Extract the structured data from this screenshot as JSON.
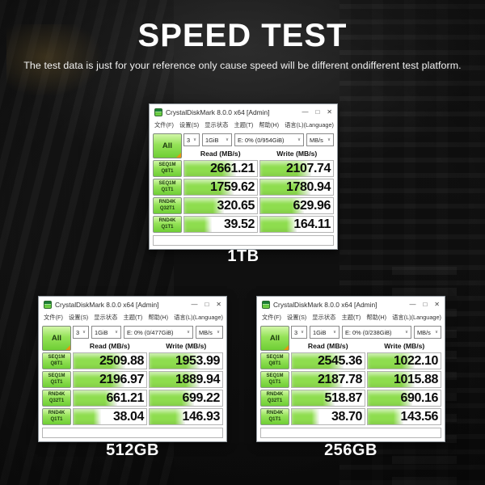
{
  "hero": {
    "title": "SPEED TEST",
    "subtitle": "The test data is just for your reference only cause speed will be different ondifferent test platform."
  },
  "app": {
    "window_title": "CrystalDiskMark 8.0.0 x64 [Admin]",
    "menu_items": [
      "文件(F)",
      "设置(S)",
      "显示状态",
      "主题(T)",
      "帮助(H)",
      "语言(L)(Language)"
    ],
    "all_button": "All",
    "test_count": "3",
    "test_size": "1GiB",
    "unit": "MB/s",
    "read_header": "Read (MB/s)",
    "write_header": "Write (MB/s)",
    "rows": [
      {
        "l1": "SEQ1M",
        "l2": "Q8T1"
      },
      {
        "l1": "SEQ1M",
        "l2": "Q1T1"
      },
      {
        "l1": "RND4K",
        "l2": "Q32T1"
      },
      {
        "l1": "RND4K",
        "l2": "Q1T1"
      }
    ]
  },
  "icons": {
    "chevron_down": "∨",
    "minimize": "—",
    "maximize": "□",
    "close": "✕"
  },
  "windows": [
    {
      "label": "1TB",
      "drive": "E: 0% (0/954GiB)",
      "results": [
        {
          "read": "2661.21",
          "write": "2107.74"
        },
        {
          "read": "1759.62",
          "write": "1780.94"
        },
        {
          "read": "320.65",
          "write": "629.96"
        },
        {
          "read": "39.52",
          "write": "164.11"
        }
      ]
    },
    {
      "label": "512GB",
      "drive": "E: 0% (0/477GiB)",
      "results": [
        {
          "read": "2509.88",
          "write": "1953.99"
        },
        {
          "read": "2196.97",
          "write": "1889.94"
        },
        {
          "read": "661.21",
          "write": "699.22"
        },
        {
          "read": "38.04",
          "write": "146.93"
        }
      ]
    },
    {
      "label": "256GB",
      "drive": "E: 0% (0/238GiB)",
      "results": [
        {
          "read": "2545.36",
          "write": "1022.10"
        },
        {
          "read": "2187.78",
          "write": "1015.88"
        },
        {
          "read": "518.87",
          "write": "690.16"
        },
        {
          "read": "38.70",
          "write": "143.56"
        }
      ]
    }
  ],
  "colors": {
    "accent_green": "#8edd4e",
    "button_green_top": "#d2f7a8",
    "button_green_bottom": "#6fce35",
    "corner_orange": "#e8940f",
    "hero_text": "#ffffff",
    "window_bg": "#ffffff"
  }
}
